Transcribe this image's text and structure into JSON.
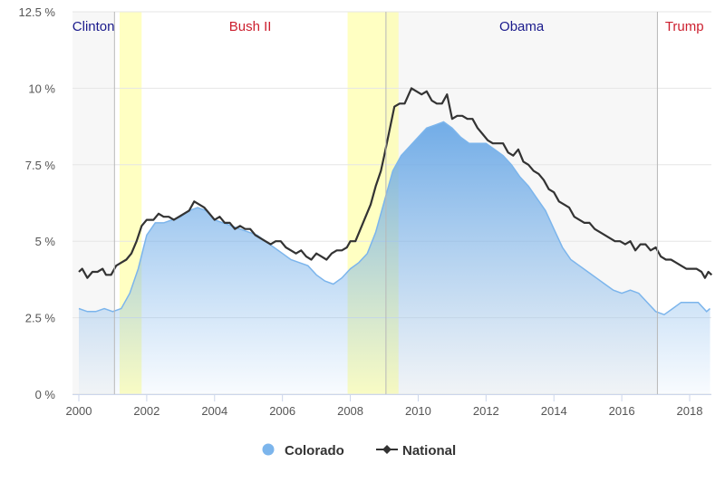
{
  "chart_data": {
    "type": "area",
    "x_unit": "year",
    "xlim": [
      2000,
      2018.7
    ],
    "ylim": [
      0,
      12.5
    ],
    "y_ticks": [
      0,
      2.5,
      5,
      7.5,
      10,
      12.5
    ],
    "y_tick_labels": [
      "0 %",
      "2.5 %",
      "5 %",
      "7.5 %",
      "10 %",
      "12.5 %"
    ],
    "x_ticks": [
      2000,
      2002,
      2004,
      2006,
      2008,
      2010,
      2012,
      2014,
      2016,
      2018
    ],
    "x_tick_labels": [
      "2000",
      "2002",
      "2004",
      "2006",
      "2008",
      "2010",
      "2012",
      "2014",
      "2016",
      "2018"
    ],
    "grid": true,
    "legend_position": "bottom-center",
    "eras": [
      {
        "label": "Clinton",
        "start": 1999.0,
        "end": 2001.05,
        "color": "#1a1a8c",
        "shaded": true
      },
      {
        "label": "Bush II",
        "start": 2001.05,
        "end": 2009.05,
        "color": "#cc1f2e",
        "shaded": false
      },
      {
        "label": "Obama",
        "start": 2009.05,
        "end": 2017.05,
        "color": "#1a1a8c",
        "shaded": true
      },
      {
        "label": "Trump",
        "start": 2017.05,
        "end": 2019.0,
        "color": "#cc1f2e",
        "shaded": false
      }
    ],
    "recessions": [
      {
        "start": 2001.2,
        "end": 2001.85
      },
      {
        "start": 2007.92,
        "end": 2009.42
      }
    ],
    "series": [
      {
        "name": "Colorado",
        "render": "area",
        "color": "#7cb5ec",
        "points": [
          [
            2000.0,
            2.8
          ],
          [
            2000.25,
            2.7
          ],
          [
            2000.5,
            2.7
          ],
          [
            2000.75,
            2.8
          ],
          [
            2001.0,
            2.7
          ],
          [
            2001.25,
            2.8
          ],
          [
            2001.5,
            3.3
          ],
          [
            2001.75,
            4.1
          ],
          [
            2002.0,
            5.2
          ],
          [
            2002.25,
            5.6
          ],
          [
            2002.5,
            5.6
          ],
          [
            2002.75,
            5.7
          ],
          [
            2003.0,
            5.8
          ],
          [
            2003.25,
            6.0
          ],
          [
            2003.5,
            6.1
          ],
          [
            2003.75,
            6.0
          ],
          [
            2004.0,
            5.7
          ],
          [
            2004.25,
            5.6
          ],
          [
            2004.5,
            5.5
          ],
          [
            2004.75,
            5.4
          ],
          [
            2005.0,
            5.3
          ],
          [
            2005.25,
            5.2
          ],
          [
            2005.5,
            5.0
          ],
          [
            2005.75,
            4.8
          ],
          [
            2006.0,
            4.6
          ],
          [
            2006.25,
            4.4
          ],
          [
            2006.5,
            4.3
          ],
          [
            2006.75,
            4.2
          ],
          [
            2007.0,
            3.9
          ],
          [
            2007.25,
            3.7
          ],
          [
            2007.5,
            3.6
          ],
          [
            2007.75,
            3.8
          ],
          [
            2008.0,
            4.1
          ],
          [
            2008.25,
            4.3
          ],
          [
            2008.5,
            4.6
          ],
          [
            2008.75,
            5.3
          ],
          [
            2009.0,
            6.3
          ],
          [
            2009.25,
            7.3
          ],
          [
            2009.5,
            7.8
          ],
          [
            2009.75,
            8.1
          ],
          [
            2010.0,
            8.4
          ],
          [
            2010.25,
            8.7
          ],
          [
            2010.5,
            8.8
          ],
          [
            2010.75,
            8.9
          ],
          [
            2011.0,
            8.7
          ],
          [
            2011.25,
            8.4
          ],
          [
            2011.5,
            8.2
          ],
          [
            2011.75,
            8.2
          ],
          [
            2012.0,
            8.2
          ],
          [
            2012.25,
            8.0
          ],
          [
            2012.5,
            7.8
          ],
          [
            2012.75,
            7.5
          ],
          [
            2013.0,
            7.1
          ],
          [
            2013.25,
            6.8
          ],
          [
            2013.5,
            6.4
          ],
          [
            2013.75,
            6.0
          ],
          [
            2014.0,
            5.4
          ],
          [
            2014.25,
            4.8
          ],
          [
            2014.5,
            4.4
          ],
          [
            2014.75,
            4.2
          ],
          [
            2015.0,
            4.0
          ],
          [
            2015.25,
            3.8
          ],
          [
            2015.5,
            3.6
          ],
          [
            2015.75,
            3.4
          ],
          [
            2016.0,
            3.3
          ],
          [
            2016.25,
            3.4
          ],
          [
            2016.5,
            3.3
          ],
          [
            2016.75,
            3.0
          ],
          [
            2017.0,
            2.7
          ],
          [
            2017.25,
            2.6
          ],
          [
            2017.5,
            2.8
          ],
          [
            2017.75,
            3.0
          ],
          [
            2018.0,
            3.0
          ],
          [
            2018.25,
            3.0
          ],
          [
            2018.5,
            2.7
          ],
          [
            2018.6,
            2.8
          ]
        ]
      },
      {
        "name": "National",
        "render": "line",
        "color": "#333333",
        "points": [
          [
            2000.0,
            4.0
          ],
          [
            2000.1,
            4.1
          ],
          [
            2000.25,
            3.8
          ],
          [
            2000.4,
            4.0
          ],
          [
            2000.55,
            4.0
          ],
          [
            2000.7,
            4.1
          ],
          [
            2000.8,
            3.9
          ],
          [
            2000.95,
            3.9
          ],
          [
            2001.1,
            4.2
          ],
          [
            2001.25,
            4.3
          ],
          [
            2001.4,
            4.4
          ],
          [
            2001.55,
            4.6
          ],
          [
            2001.7,
            5.0
          ],
          [
            2001.85,
            5.5
          ],
          [
            2002.0,
            5.7
          ],
          [
            2002.2,
            5.7
          ],
          [
            2002.35,
            5.9
          ],
          [
            2002.5,
            5.8
          ],
          [
            2002.65,
            5.8
          ],
          [
            2002.8,
            5.7
          ],
          [
            2002.95,
            5.8
          ],
          [
            2003.1,
            5.9
          ],
          [
            2003.25,
            6.0
          ],
          [
            2003.4,
            6.3
          ],
          [
            2003.55,
            6.2
          ],
          [
            2003.7,
            6.1
          ],
          [
            2003.85,
            5.9
          ],
          [
            2004.0,
            5.7
          ],
          [
            2004.15,
            5.8
          ],
          [
            2004.3,
            5.6
          ],
          [
            2004.45,
            5.6
          ],
          [
            2004.6,
            5.4
          ],
          [
            2004.75,
            5.5
          ],
          [
            2004.9,
            5.4
          ],
          [
            2005.05,
            5.4
          ],
          [
            2005.2,
            5.2
          ],
          [
            2005.35,
            5.1
          ],
          [
            2005.5,
            5.0
          ],
          [
            2005.65,
            4.9
          ],
          [
            2005.8,
            5.0
          ],
          [
            2005.95,
            5.0
          ],
          [
            2006.1,
            4.8
          ],
          [
            2006.25,
            4.7
          ],
          [
            2006.4,
            4.6
          ],
          [
            2006.55,
            4.7
          ],
          [
            2006.7,
            4.5
          ],
          [
            2006.85,
            4.4
          ],
          [
            2007.0,
            4.6
          ],
          [
            2007.15,
            4.5
          ],
          [
            2007.3,
            4.4
          ],
          [
            2007.45,
            4.6
          ],
          [
            2007.6,
            4.7
          ],
          [
            2007.75,
            4.7
          ],
          [
            2007.9,
            4.8
          ],
          [
            2008.0,
            5.0
          ],
          [
            2008.15,
            5.0
          ],
          [
            2008.3,
            5.4
          ],
          [
            2008.45,
            5.8
          ],
          [
            2008.6,
            6.2
          ],
          [
            2008.75,
            6.8
          ],
          [
            2008.9,
            7.3
          ],
          [
            2009.0,
            7.8
          ],
          [
            2009.15,
            8.6
          ],
          [
            2009.3,
            9.4
          ],
          [
            2009.45,
            9.5
          ],
          [
            2009.6,
            9.5
          ],
          [
            2009.8,
            10.0
          ],
          [
            2009.95,
            9.9
          ],
          [
            2010.1,
            9.8
          ],
          [
            2010.25,
            9.9
          ],
          [
            2010.4,
            9.6
          ],
          [
            2010.55,
            9.5
          ],
          [
            2010.7,
            9.5
          ],
          [
            2010.85,
            9.8
          ],
          [
            2011.0,
            9.0
          ],
          [
            2011.15,
            9.1
          ],
          [
            2011.3,
            9.1
          ],
          [
            2011.45,
            9.0
          ],
          [
            2011.6,
            9.0
          ],
          [
            2011.75,
            8.7
          ],
          [
            2011.9,
            8.5
          ],
          [
            2012.05,
            8.3
          ],
          [
            2012.2,
            8.2
          ],
          [
            2012.35,
            8.2
          ],
          [
            2012.5,
            8.2
          ],
          [
            2012.65,
            7.9
          ],
          [
            2012.8,
            7.8
          ],
          [
            2012.95,
            8.0
          ],
          [
            2013.1,
            7.6
          ],
          [
            2013.25,
            7.5
          ],
          [
            2013.4,
            7.3
          ],
          [
            2013.55,
            7.2
          ],
          [
            2013.7,
            7.0
          ],
          [
            2013.85,
            6.7
          ],
          [
            2014.0,
            6.6
          ],
          [
            2014.15,
            6.3
          ],
          [
            2014.3,
            6.2
          ],
          [
            2014.45,
            6.1
          ],
          [
            2014.6,
            5.8
          ],
          [
            2014.75,
            5.7
          ],
          [
            2014.9,
            5.6
          ],
          [
            2015.05,
            5.6
          ],
          [
            2015.2,
            5.4
          ],
          [
            2015.35,
            5.3
          ],
          [
            2015.5,
            5.2
          ],
          [
            2015.65,
            5.1
          ],
          [
            2015.8,
            5.0
          ],
          [
            2015.95,
            5.0
          ],
          [
            2016.1,
            4.9
          ],
          [
            2016.25,
            5.0
          ],
          [
            2016.4,
            4.7
          ],
          [
            2016.55,
            4.9
          ],
          [
            2016.7,
            4.9
          ],
          [
            2016.85,
            4.7
          ],
          [
            2017.0,
            4.8
          ],
          [
            2017.15,
            4.5
          ],
          [
            2017.3,
            4.4
          ],
          [
            2017.45,
            4.4
          ],
          [
            2017.6,
            4.3
          ],
          [
            2017.75,
            4.2
          ],
          [
            2017.9,
            4.1
          ],
          [
            2018.05,
            4.1
          ],
          [
            2018.2,
            4.1
          ],
          [
            2018.35,
            4.0
          ],
          [
            2018.45,
            3.8
          ],
          [
            2018.55,
            4.0
          ],
          [
            2018.65,
            3.9
          ]
        ]
      }
    ]
  }
}
